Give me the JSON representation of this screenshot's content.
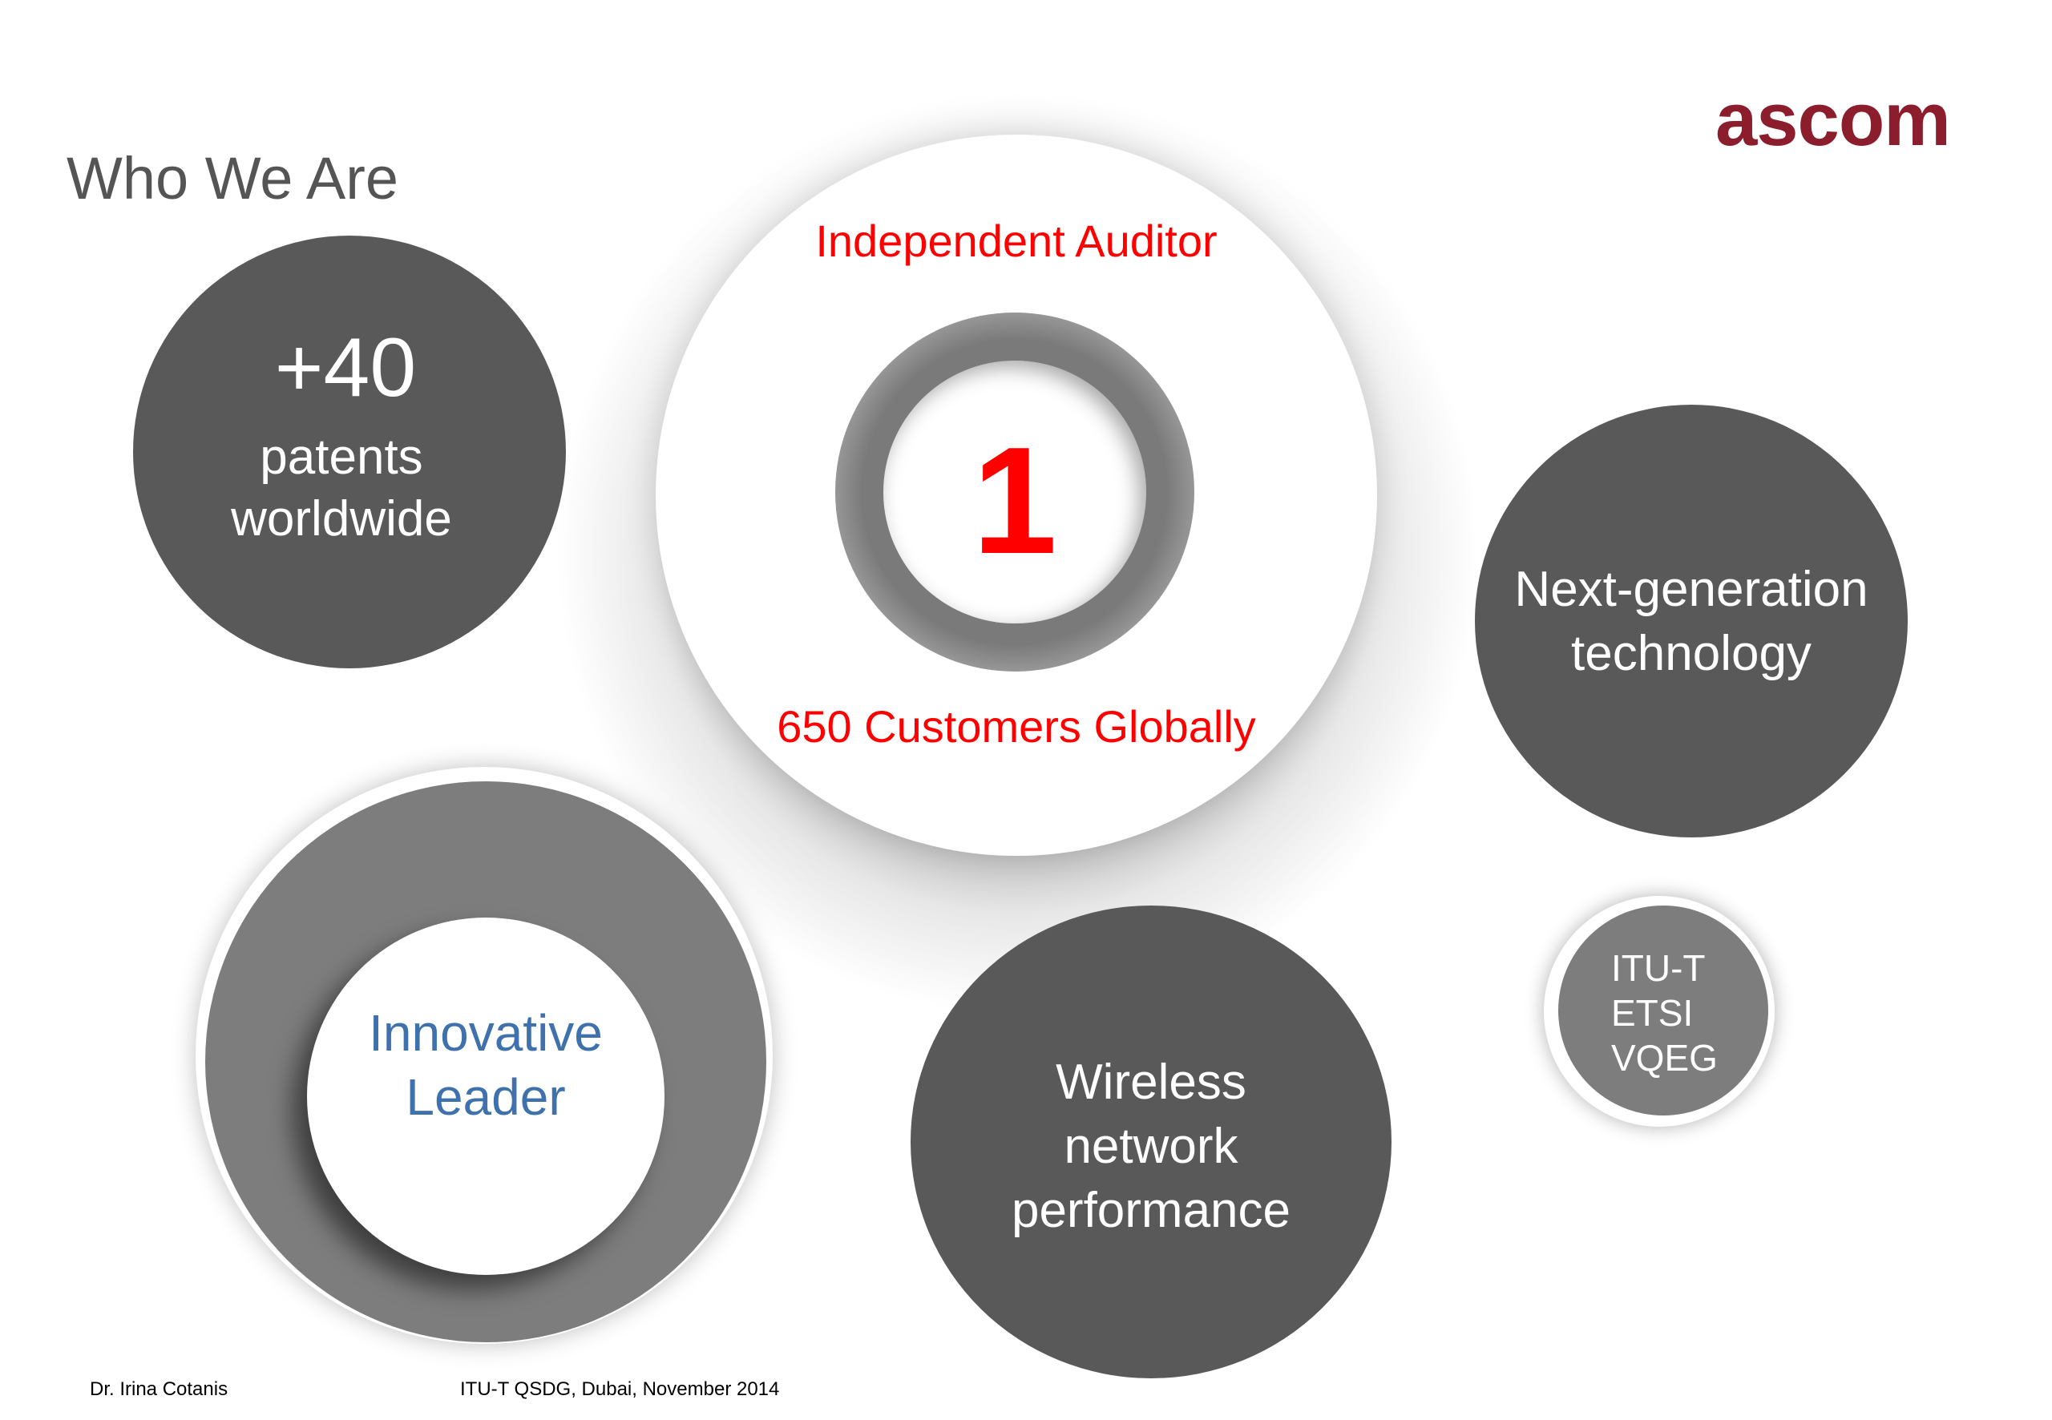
{
  "logo": {
    "text": "ascom",
    "color": "#8b1d2c"
  },
  "title": "Who We Are",
  "patents": {
    "number": "+40",
    "line1": "patents",
    "line2": "worldwide"
  },
  "center": {
    "top_label": "Independent Auditor",
    "number": "1",
    "bottom_label": "650 Customers Globally",
    "accent": "#ff0000"
  },
  "nextgen": {
    "line1": "Next-generation",
    "line2": "technology"
  },
  "innovative": {
    "line1": "Innovative",
    "line2": "Leader",
    "color": "#3f72ad"
  },
  "wireless": {
    "line1": "Wireless",
    "line2": "network",
    "line3": "performance"
  },
  "standards": {
    "items": [
      "ITU-T",
      "ETSI",
      "VQEG"
    ]
  },
  "footer": {
    "author": "Dr. Irina Cotanis",
    "event": "ITU-T QSDG, Dubai, November  2014"
  }
}
